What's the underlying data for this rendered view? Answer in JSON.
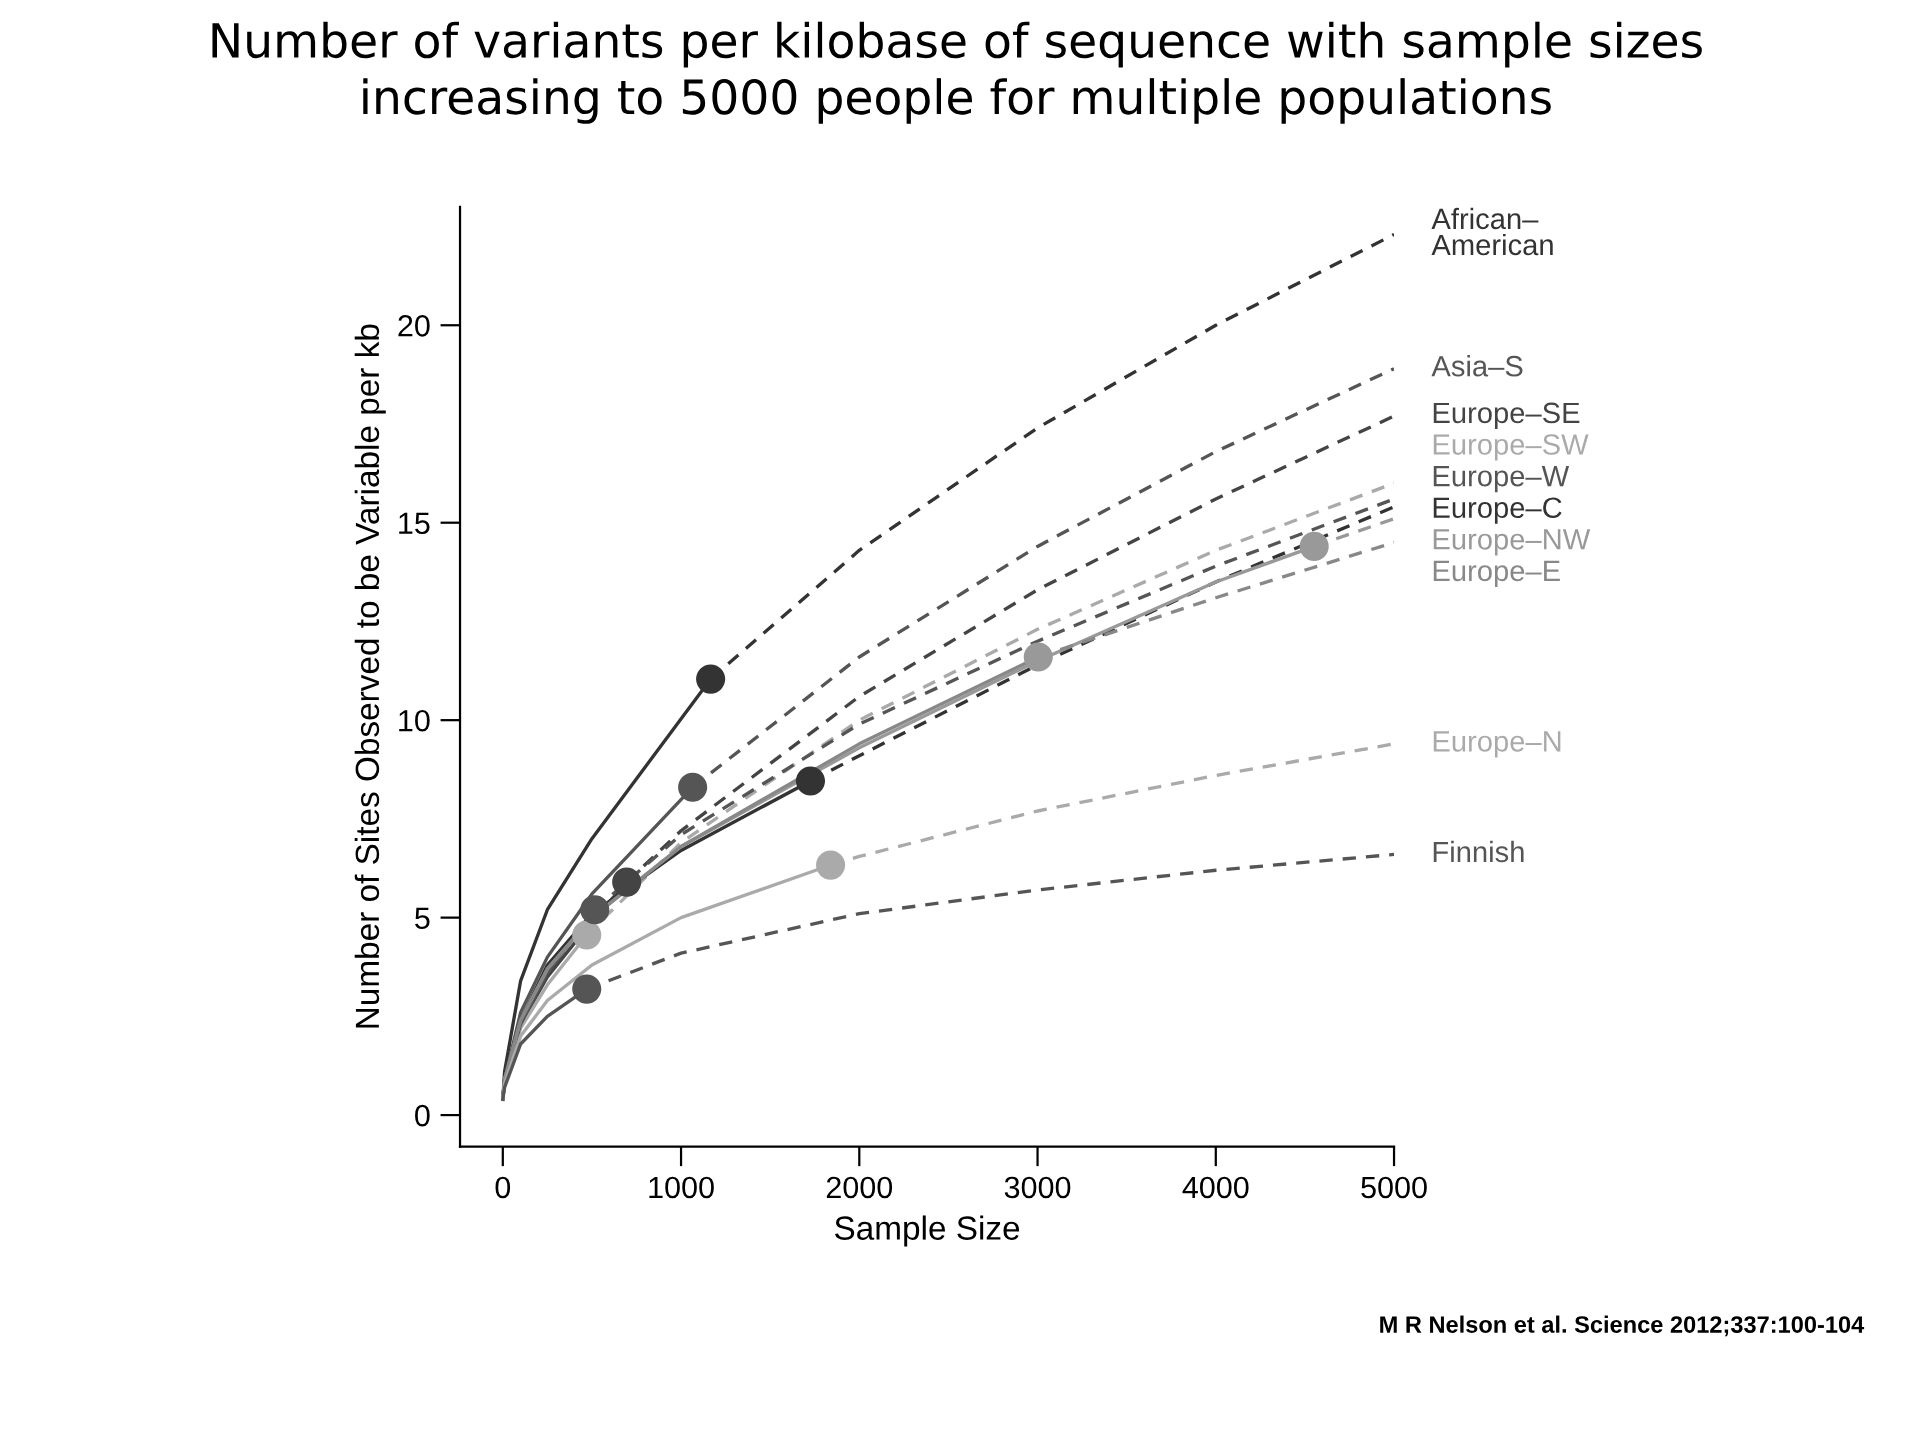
{
  "chart_data": {
    "type": "line",
    "title": "Number of variants per kilobase of sequence with sample sizes\nincreasing to 5000 people for multiple populations",
    "xlabel": "Sample Size",
    "ylabel": "Number of Sites Observed to be Variable per kb",
    "xlim": [
      -240,
      5000
    ],
    "ylim": [
      -0.8,
      23
    ],
    "xticks": [
      0,
      1000,
      2000,
      3000,
      4000,
      5000
    ],
    "yticks": [
      0,
      5,
      10,
      15,
      20
    ],
    "grid": false,
    "legend": false,
    "marker": "none",
    "annotations": [
      "M R Nelson et al. Science 2012;337:100-104"
    ],
    "series": [
      {
        "color": "#333333",
        "line_style": "solid",
        "x": [
          0,
          10,
          100,
          250,
          500,
          1166
        ],
        "values": [
          0.4,
          1.1,
          3.4,
          5.2,
          7.0,
          11.04
        ]
      },
      {
        "name": "African–\nAmerican",
        "color": "#333333",
        "line_style": "dashed",
        "x": [
          1166,
          2000,
          3000,
          4000,
          5000
        ],
        "values": [
          11.04,
          14.3,
          17.4,
          20.0,
          22.3
        ]
      },
      {
        "color": "#555555",
        "line_style": "solid",
        "x": [
          0,
          10,
          100,
          250,
          500,
          1065
        ],
        "values": [
          0.4,
          0.9,
          2.6,
          4.0,
          5.6,
          8.3
        ]
      },
      {
        "name": "Asia–S",
        "color": "#555555",
        "line_style": "dashed",
        "x": [
          1065,
          2000,
          3000,
          4000,
          5000
        ],
        "values": [
          8.3,
          11.6,
          14.4,
          16.8,
          18.9
        ]
      },
      {
        "color": "#444444",
        "line_style": "solid",
        "x": [
          0,
          10,
          100,
          250,
          500,
          695
        ],
        "values": [
          0.4,
          0.9,
          2.3,
          3.5,
          4.9,
          5.9
        ]
      },
      {
        "name": "Europe–SE",
        "color": "#444444",
        "line_style": "dashed",
        "x": [
          695,
          1000,
          2000,
          3000,
          4000,
          5000
        ],
        "values": [
          5.9,
          7.2,
          10.6,
          13.3,
          15.6,
          17.7
        ]
      },
      {
        "color": "#aaaaaa",
        "line_style": "solid",
        "x": [
          0,
          10,
          100,
          250,
          471
        ],
        "values": [
          0.4,
          0.9,
          2.2,
          3.3,
          4.56
        ]
      },
      {
        "name": "Europe–SW",
        "color": "#aaaaaa",
        "line_style": "dashed",
        "x": [
          471,
          1000,
          2000,
          3000,
          4000,
          5000
        ],
        "values": [
          4.56,
          6.9,
          10.0,
          12.3,
          14.3,
          16.0
        ]
      },
      {
        "color": "#555555",
        "line_style": "solid",
        "x": [
          0,
          10,
          100,
          250,
          516
        ],
        "values": [
          0.4,
          0.9,
          2.3,
          3.6,
          5.2
        ]
      },
      {
        "name": "Europe–W",
        "color": "#555555",
        "line_style": "dashed",
        "x": [
          516,
          1000,
          2000,
          3000,
          4000,
          5000
        ],
        "values": [
          5.2,
          7.1,
          9.9,
          12.0,
          13.9,
          15.6
        ]
      },
      {
        "color": "#333333",
        "line_style": "solid",
        "x": [
          0,
          10,
          100,
          250,
          500,
          1000,
          1726
        ],
        "values": [
          0.4,
          0.9,
          2.4,
          3.8,
          5.1,
          6.7,
          8.46
        ]
      },
      {
        "name": "Europe–C",
        "color": "#333333",
        "line_style": "dashed",
        "x": [
          1726,
          2000,
          3000,
          4000,
          5000
        ],
        "values": [
          8.46,
          9.1,
          11.4,
          13.5,
          15.4
        ]
      },
      {
        "color": "#999999",
        "line_style": "solid",
        "x": [
          0,
          10,
          100,
          250,
          500,
          1000,
          2000,
          3000,
          4000,
          4552
        ],
        "values": [
          0.4,
          0.9,
          2.4,
          3.7,
          5.0,
          6.8,
          9.3,
          11.5,
          13.5,
          14.4
        ]
      },
      {
        "name": "Europe–NW",
        "color": "#999999",
        "line_style": "dashed",
        "x": [
          4552,
          5000
        ],
        "values": [
          14.4,
          15.1
        ]
      },
      {
        "color": "#888888",
        "line_style": "solid",
        "x": [
          0,
          10,
          100,
          250,
          500,
          1000,
          2000,
          3004
        ],
        "values": [
          0.4,
          0.9,
          2.4,
          3.7,
          5.0,
          6.8,
          9.4,
          11.6
        ]
      },
      {
        "name": "Europe–E",
        "color": "#888888",
        "line_style": "dashed",
        "x": [
          3004,
          4000,
          5000
        ],
        "values": [
          11.6,
          13.1,
          14.5
        ]
      },
      {
        "color": "#aaaaaa",
        "line_style": "solid",
        "x": [
          0,
          10,
          100,
          250,
          500,
          1000,
          1839
        ],
        "values": [
          0.4,
          0.8,
          2.0,
          2.9,
          3.8,
          5.0,
          6.33
        ]
      },
      {
        "name": "Europe–N",
        "color": "#aaaaaa",
        "line_style": "dashed",
        "x": [
          1839,
          2000,
          3000,
          4000,
          5000
        ],
        "values": [
          6.33,
          6.55,
          7.7,
          8.6,
          9.4
        ]
      },
      {
        "color": "#555555",
        "line_style": "solid",
        "x": [
          0,
          10,
          100,
          250,
          471
        ],
        "values": [
          0.4,
          0.7,
          1.8,
          2.5,
          3.19
        ]
      },
      {
        "name": "Finnish",
        "color": "#555555",
        "line_style": "dashed",
        "x": [
          471,
          1000,
          2000,
          3000,
          4000,
          5000
        ],
        "values": [
          3.19,
          4.1,
          5.1,
          5.7,
          6.2,
          6.6
        ]
      },
      {
        "type": "scatter",
        "marker": "circle",
        "x": [
          1166,
          1065,
          695,
          471,
          516,
          1726,
          4552,
          3004,
          1839,
          471
        ],
        "values": [
          11.04,
          8.3,
          5.9,
          4.56,
          5.2,
          8.46,
          14.4,
          11.6,
          6.33,
          3.19
        ],
        "colors": [
          "#333333",
          "#555555",
          "#444444",
          "#aaaaaa",
          "#555555",
          "#333333",
          "#999999",
          "#999999",
          "#aaaaaa",
          "#555555"
        ]
      }
    ]
  }
}
